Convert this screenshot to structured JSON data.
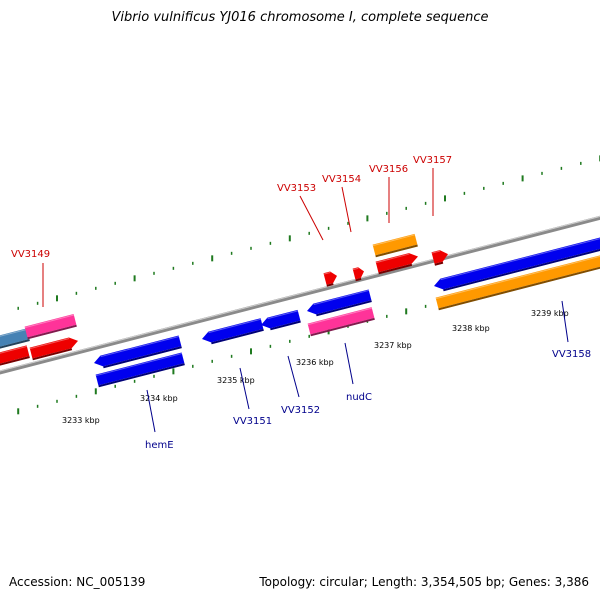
{
  "title": "Vibrio vulnificus YJ016 chromosome I, complete sequence",
  "footer": {
    "accession": "Accession: NC_005139",
    "summary": "Topology: circular; Length: 3,354,505 bp; Genes: 3,386"
  },
  "colors": {
    "backbone": "#8a8a8a",
    "tick": "#1f7a1f",
    "label_top": "#cc0000",
    "label_bottom": "#00008b",
    "scale_text": "#000000",
    "gene_blue": "#0000ee",
    "gene_red": "#ee0000",
    "gene_orange": "#ff9900",
    "gene_pink": "#ff3399",
    "gene_steel": "#4682b4"
  },
  "scale_labels": [
    "3233 kbp",
    "3234 kbp",
    "3235 kbp",
    "3236 kbp",
    "3237 kbp",
    "3238 kbp",
    "3239 kbp"
  ],
  "top_gene_labels": [
    "VV3149",
    "VV3153",
    "VV3154",
    "VV3156",
    "VV3157"
  ],
  "bottom_gene_labels": [
    "hemE",
    "VV3151",
    "VV3152",
    "nudC",
    "VV3158"
  ]
}
